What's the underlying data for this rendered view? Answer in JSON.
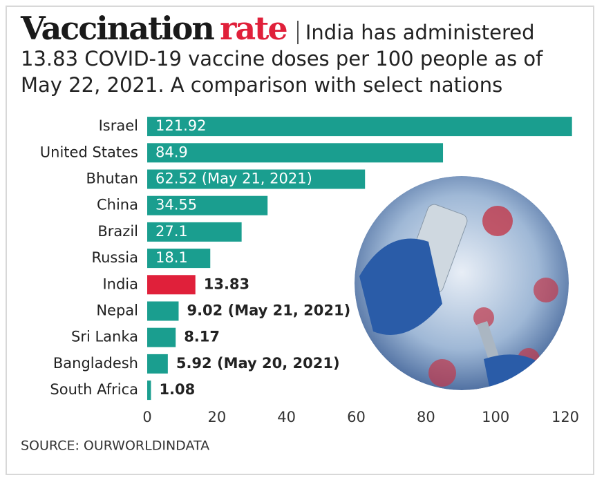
{
  "chart_data": {
    "type": "hbar",
    "title": [
      "Vaccination",
      "rate"
    ],
    "title_colors": [
      "#1a1a1a",
      "#e0203a"
    ],
    "subtitle": "India has administered 13.83 COVID-19 vaccine doses per 100 people as of May 22, 2021. A comparison with select nations",
    "categories": [
      "Israel",
      "United States",
      "Bhutan",
      "China",
      "Brazil",
      "Russia",
      "India",
      "Nepal",
      "Sri Lanka",
      "Bangladesh",
      "South Africa"
    ],
    "values": [
      121.92,
      84.9,
      62.52,
      34.55,
      27.1,
      18.1,
      13.83,
      9.02,
      8.17,
      5.92,
      1.08
    ],
    "value_labels": [
      "121.92",
      "84.9",
      "62.52 (May 21, 2021)",
      "34.55",
      "27.1",
      "18.1",
      "13.83",
      "9.02 (May 21, 2021)",
      "8.17",
      "5.92 (May 20, 2021)",
      "1.08"
    ],
    "colors": [
      "#1a9e8f",
      "#1a9e8f",
      "#1a9e8f",
      "#1a9e8f",
      "#1a9e8f",
      "#1a9e8f",
      "#e0203a",
      "#1a9e8f",
      "#1a9e8f",
      "#1a9e8f",
      "#1a9e8f"
    ],
    "xlim": [
      0,
      120
    ],
    "xticks": [
      0,
      20,
      40,
      60,
      80,
      100,
      120
    ],
    "source": "SOURCE: OURWORLDINDATA"
  }
}
